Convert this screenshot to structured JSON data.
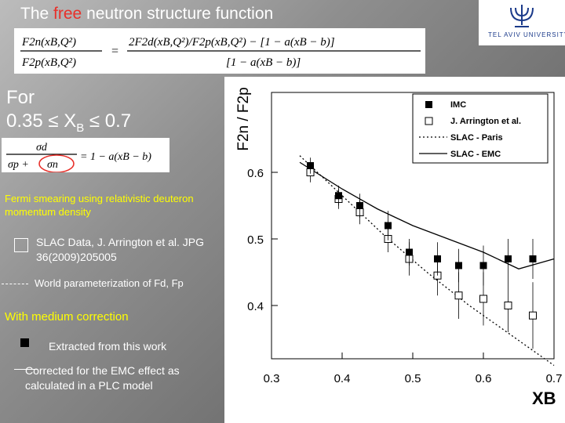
{
  "title_prefix": "The",
  "title_free": "free",
  "title_suffix": "neutron  structure function",
  "logo_text": "TEL AVIV UNIVERSITY",
  "equation_main_lhs_num": "F2n(xB,Q²)",
  "equation_main_lhs_den": "F2p(xB,Q²)",
  "equation_main_rhs_num": "2F2d(xB,Q²)/F2p(xB,Q²) − [1 − a(xB − b)]",
  "equation_main_rhs_den": "[1 − a(xB − b)]",
  "for_line1": "For",
  "for_line2_a": "0.35 ≤ X",
  "for_line2_sub": "B",
  "for_line2_b": " ≤ 0.7",
  "equation_ratio_num": "σd",
  "equation_ratio_den_a": "σp +",
  "equation_ratio_den_b": "σn",
  "equation_ratio_rhs": "= 1 − a(xB − b)",
  "fermi_text": "Fermi smearing using relativistic deuteron momentum density",
  "slac_data_text": "SLAC Data,  J. Arrington et al. JPG 36(2009)205005",
  "world_text": "World parameterization of Fd, Fp",
  "medium_text": "With medium correction",
  "extracted_text": "Extracted from this work",
  "corrected_text": "Corrected for the EMC effect as calculated in a PLC model",
  "chart_data": {
    "type": "scatter",
    "title": "",
    "ylabel": "F2n / F2p",
    "xlabel": "XB",
    "xlim": [
      0.3,
      0.7
    ],
    "ylim": [
      0.32,
      0.72
    ],
    "x_ticks": [
      0.3,
      0.4,
      0.5,
      0.6,
      0.7
    ],
    "x_tick_labels": [
      "0.3",
      "0.4",
      "0.5",
      "0.6",
      "0.7"
    ],
    "y_ticks": [
      0.4,
      0.5,
      0.6
    ],
    "y_tick_labels": [
      "0.4",
      "0.5",
      "0.6"
    ],
    "grid": false,
    "legend_position": "top-right",
    "legend": [
      {
        "label": "IMC",
        "marker": "filled-square"
      },
      {
        "label": "J. Arrington et al.",
        "marker": "open-square"
      },
      {
        "label": "SLAC - Paris",
        "style": "dotted"
      },
      {
        "label": "SLAC - EMC",
        "style": "solid"
      }
    ],
    "series": [
      {
        "name": "IMC",
        "x": [
          0.355,
          0.395,
          0.425,
          0.465,
          0.495,
          0.535,
          0.565,
          0.6,
          0.635,
          0.67
        ],
        "y": [
          0.61,
          0.565,
          0.55,
          0.52,
          0.48,
          0.47,
          0.46,
          0.46,
          0.47,
          0.47
        ],
        "err": [
          0.012,
          0.015,
          0.018,
          0.022,
          0.02,
          0.025,
          0.025,
          0.03,
          0.03,
          0.03
        ]
      },
      {
        "name": "J. Arrington et al.",
        "x": [
          0.355,
          0.395,
          0.425,
          0.465,
          0.495,
          0.535,
          0.565,
          0.6,
          0.635,
          0.67
        ],
        "y": [
          0.6,
          0.56,
          0.54,
          0.5,
          0.47,
          0.445,
          0.415,
          0.41,
          0.4,
          0.385
        ],
        "err": [
          0.015,
          0.015,
          0.018,
          0.02,
          0.025,
          0.03,
          0.035,
          0.04,
          0.04,
          0.05
        ]
      },
      {
        "name": "SLAC - Paris",
        "x": [
          0.34,
          0.4,
          0.46,
          0.52,
          0.58,
          0.64,
          0.7
        ],
        "y": [
          0.625,
          0.565,
          0.505,
          0.45,
          0.4,
          0.355,
          0.31
        ]
      },
      {
        "name": "SLAC - EMC",
        "x": [
          0.34,
          0.4,
          0.45,
          0.5,
          0.55,
          0.6,
          0.65,
          0.7
        ],
        "y": [
          0.615,
          0.575,
          0.545,
          0.52,
          0.5,
          0.48,
          0.455,
          0.47
        ]
      }
    ]
  }
}
